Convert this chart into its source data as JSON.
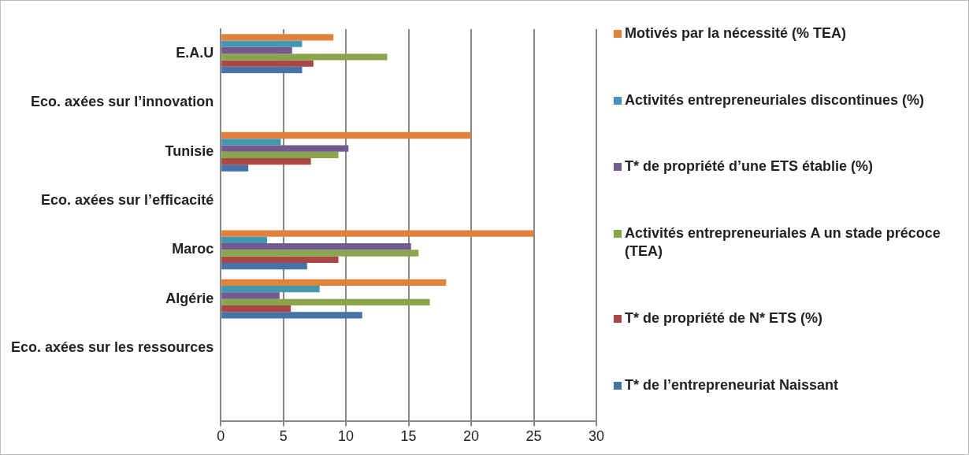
{
  "chart_data": {
    "type": "bar",
    "orientation": "horizontal",
    "categories": [
      "E.A.U",
      "Eco. axées sur l’innovation",
      "Tunisie",
      "Eco. axées sur l’efficacité",
      "Maroc",
      "Algérie",
      "Eco. axées sur les ressources",
      null
    ],
    "series": [
      {
        "name": "Motivés par la nécessité  (% TEA)",
        "color": "#e0823d",
        "values": [
          9.0,
          null,
          20.0,
          null,
          25.0,
          18.0,
          null,
          null
        ]
      },
      {
        "name": "Activités entrepreneuriales discontinues (%)",
        "color": "#4298b0",
        "values": [
          6.5,
          null,
          4.8,
          null,
          3.7,
          7.9,
          null,
          null
        ]
      },
      {
        "name": "T* de propriété d’une ETS établie (%)",
        "color": "#74598e",
        "values": [
          5.7,
          null,
          10.2,
          null,
          15.2,
          4.7,
          null,
          null
        ]
      },
      {
        "name": "Activités entrepreneuriales  A un stade précoce (TEA)",
        "color": "#8aa64c",
        "values": [
          13.3,
          null,
          9.4,
          null,
          15.8,
          16.7,
          null,
          null
        ]
      },
      {
        "name": "T* de propriété de N* ETS (%)",
        "color": "#aa4644",
        "values": [
          7.4,
          null,
          7.2,
          null,
          9.4,
          5.6,
          null,
          null
        ]
      },
      {
        "name": "T* de l’entrepreneuriat  Naissant",
        "color": "#4572a7",
        "values": [
          6.5,
          null,
          2.2,
          null,
          6.9,
          11.3,
          null,
          null
        ]
      }
    ],
    "xlim": [
      0,
      30
    ],
    "xticks": [
      0,
      5,
      10,
      15,
      20,
      25,
      30
    ],
    "grid": "x",
    "legend": "right"
  }
}
